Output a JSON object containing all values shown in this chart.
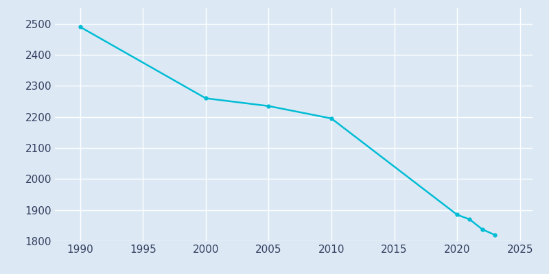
{
  "years": [
    1990,
    2000,
    2005,
    2010,
    2020,
    2021,
    2022,
    2023
  ],
  "population": [
    2490,
    2260,
    2235,
    2195,
    1885,
    1870,
    1838,
    1820
  ],
  "line_color": "#00BCD4",
  "marker_style": "o",
  "marker_size": 3.5,
  "line_width": 1.8,
  "background_color": "#dce9f5",
  "plot_background_color": "#dce9f5",
  "grid_color": "#ffffff",
  "xlim": [
    1988,
    2026
  ],
  "ylim": [
    1800,
    2550
  ],
  "xticks": [
    1990,
    1995,
    2000,
    2005,
    2010,
    2015,
    2020,
    2025
  ],
  "yticks": [
    1800,
    1900,
    2000,
    2100,
    2200,
    2300,
    2400,
    2500
  ],
  "tick_label_color": "#354060",
  "tick_fontsize": 11,
  "spine_visible": false
}
